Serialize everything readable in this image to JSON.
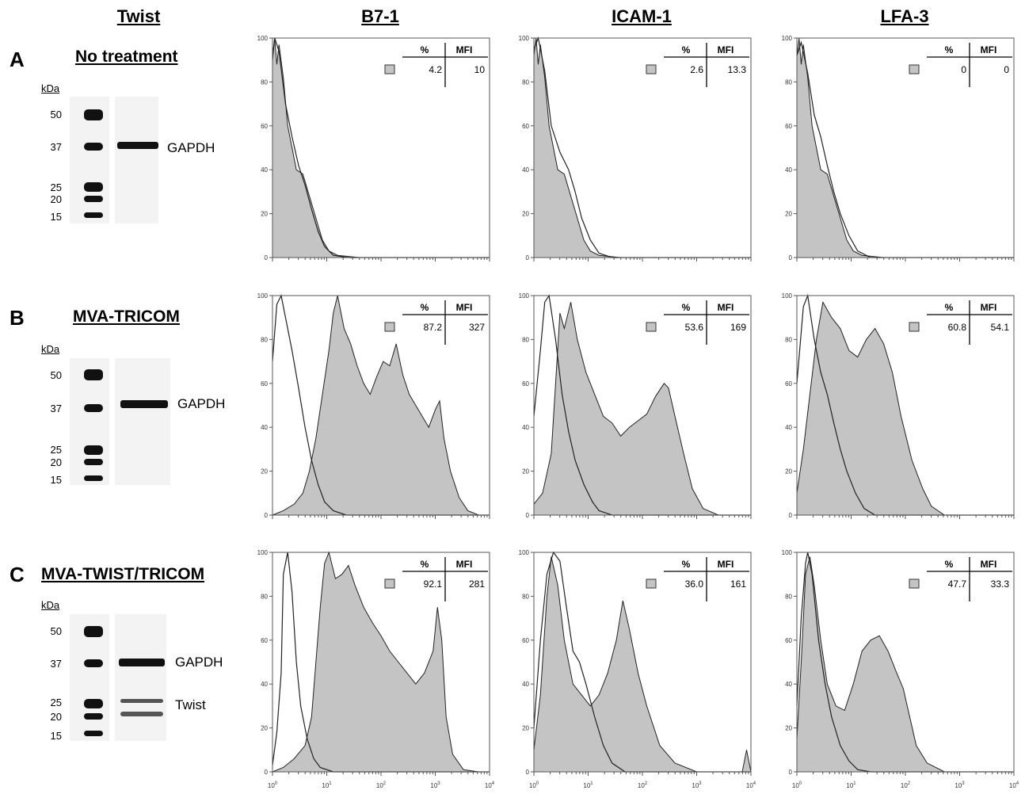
{
  "columns": {
    "blot": "Twist",
    "markers": [
      "B7-1",
      "ICAM-1",
      "LFA-3"
    ]
  },
  "table_header": {
    "pct": "%",
    "mfi": "MFI"
  },
  "rows": [
    {
      "letter": "A",
      "title": "No treatment",
      "blot": {
        "unit": "kDa",
        "ladder": [
          "50",
          "37",
          "25",
          "20",
          "15"
        ],
        "bands": [
          "GAPDH"
        ]
      },
      "histograms": [
        {
          "marker": "B7-1",
          "pct": "4.2",
          "mfi": "10"
        },
        {
          "marker": "ICAM-1",
          "pct": "2.6",
          "mfi": "13.3"
        },
        {
          "marker": "LFA-3",
          "pct": "0",
          "mfi": "0"
        }
      ]
    },
    {
      "letter": "B",
      "title": "MVA-TRICOM",
      "blot": {
        "unit": "kDa",
        "ladder": [
          "50",
          "37",
          "25",
          "20",
          "15"
        ],
        "bands": [
          "GAPDH"
        ]
      },
      "histograms": [
        {
          "marker": "B7-1",
          "pct": "87.2",
          "mfi": "327"
        },
        {
          "marker": "ICAM-1",
          "pct": "53.6",
          "mfi": "169"
        },
        {
          "marker": "LFA-3",
          "pct": "60.8",
          "mfi": "54.1"
        }
      ]
    },
    {
      "letter": "C",
      "title": "MVA-TWIST/TRICOM",
      "blot": {
        "unit": "kDa",
        "ladder": [
          "50",
          "37",
          "25",
          "20",
          "15"
        ],
        "bands": [
          "GAPDH",
          "Twist"
        ]
      },
      "histograms": [
        {
          "marker": "B7-1",
          "pct": "92.1",
          "mfi": "281"
        },
        {
          "marker": "ICAM-1",
          "pct": "36.0",
          "mfi": "161"
        },
        {
          "marker": "LFA-3",
          "pct": "47.7",
          "mfi": "33.3"
        }
      ]
    }
  ],
  "axes": {
    "y_ticks": [
      "0",
      "20",
      "40",
      "60",
      "80",
      "100"
    ],
    "x_ticks": [
      "10",
      "10",
      "10",
      "10",
      "10"
    ],
    "x_tick_exponents": [
      "0",
      "1",
      "2",
      "3",
      "4"
    ]
  },
  "colors": {
    "filled": "#c4c4c4",
    "outline": "#222222"
  }
}
